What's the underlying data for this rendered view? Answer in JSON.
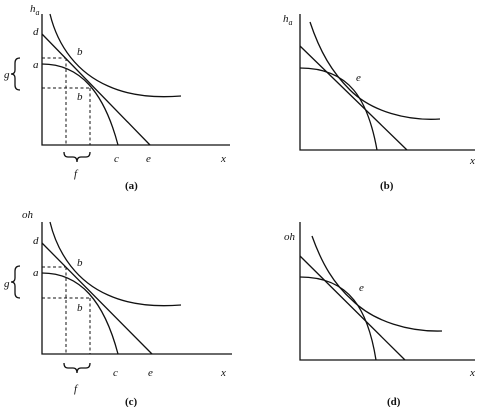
{
  "panels": [
    {
      "caption": "(a)",
      "labels": {
        "y_axis": "h",
        "y_axis_sub": "a",
        "x_axis": "x",
        "d": "d",
        "a": "a",
        "b_upper": "b",
        "b_lower": "b",
        "g": "g",
        "f": "f",
        "c": "c",
        "e": "e"
      }
    },
    {
      "caption": "(b)",
      "labels": {
        "y_axis": "h",
        "y_axis_sub": "a",
        "x_axis": "x",
        "e": "e"
      }
    },
    {
      "caption": "(c)",
      "labels": {
        "y_axis": "oh",
        "x_axis": "x",
        "d": "d",
        "a": "a",
        "b_upper": "b",
        "b_lower": "b",
        "g": "g",
        "f": "f",
        "c": "c",
        "e": "e"
      }
    },
    {
      "caption": "(d)",
      "labels": {
        "y_axis": "oh",
        "x_axis": "x",
        "e": "e"
      }
    }
  ]
}
